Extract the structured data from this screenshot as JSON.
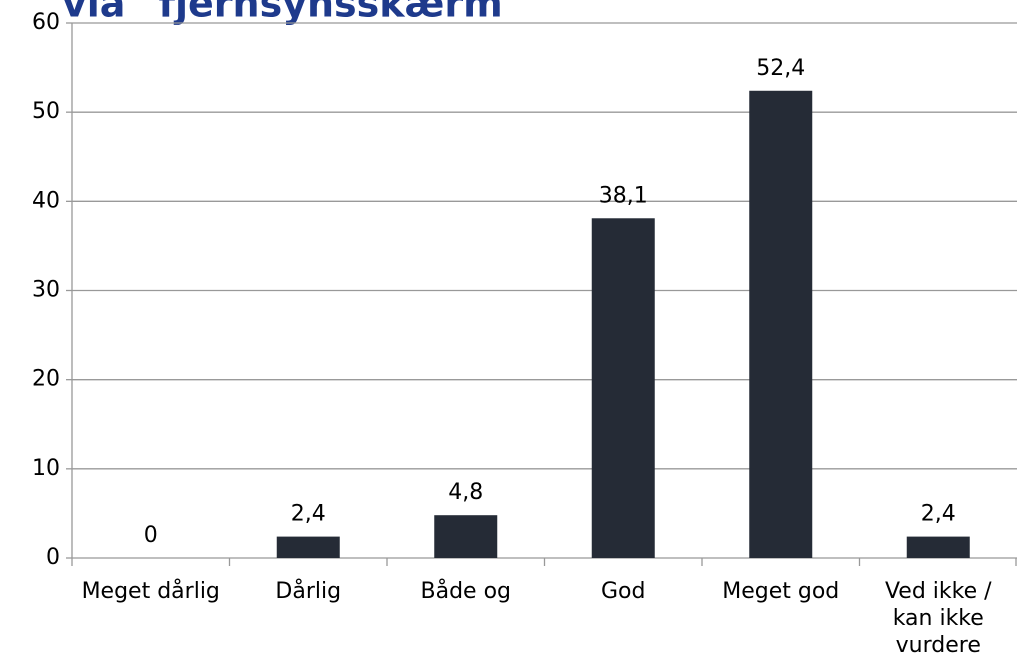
{
  "chart_data": {
    "type": "bar",
    "title": "via \"fjernsynsskærm\"",
    "categories": [
      "Meget dårlig",
      "Dårlig",
      "Både og",
      "God",
      "Meget god",
      "Ved ikke / kan ikke vurdere"
    ],
    "values": [
      0,
      2.4,
      4.8,
      38.1,
      52.4,
      2.4
    ],
    "value_labels": [
      "0",
      "2,4",
      "4,8",
      "38,1",
      "52,4",
      "2,4"
    ],
    "color": "#252b36",
    "ylim": [
      0,
      60
    ],
    "yticks": [
      0,
      10,
      20,
      30,
      40,
      50,
      60
    ],
    "grid": true
  }
}
